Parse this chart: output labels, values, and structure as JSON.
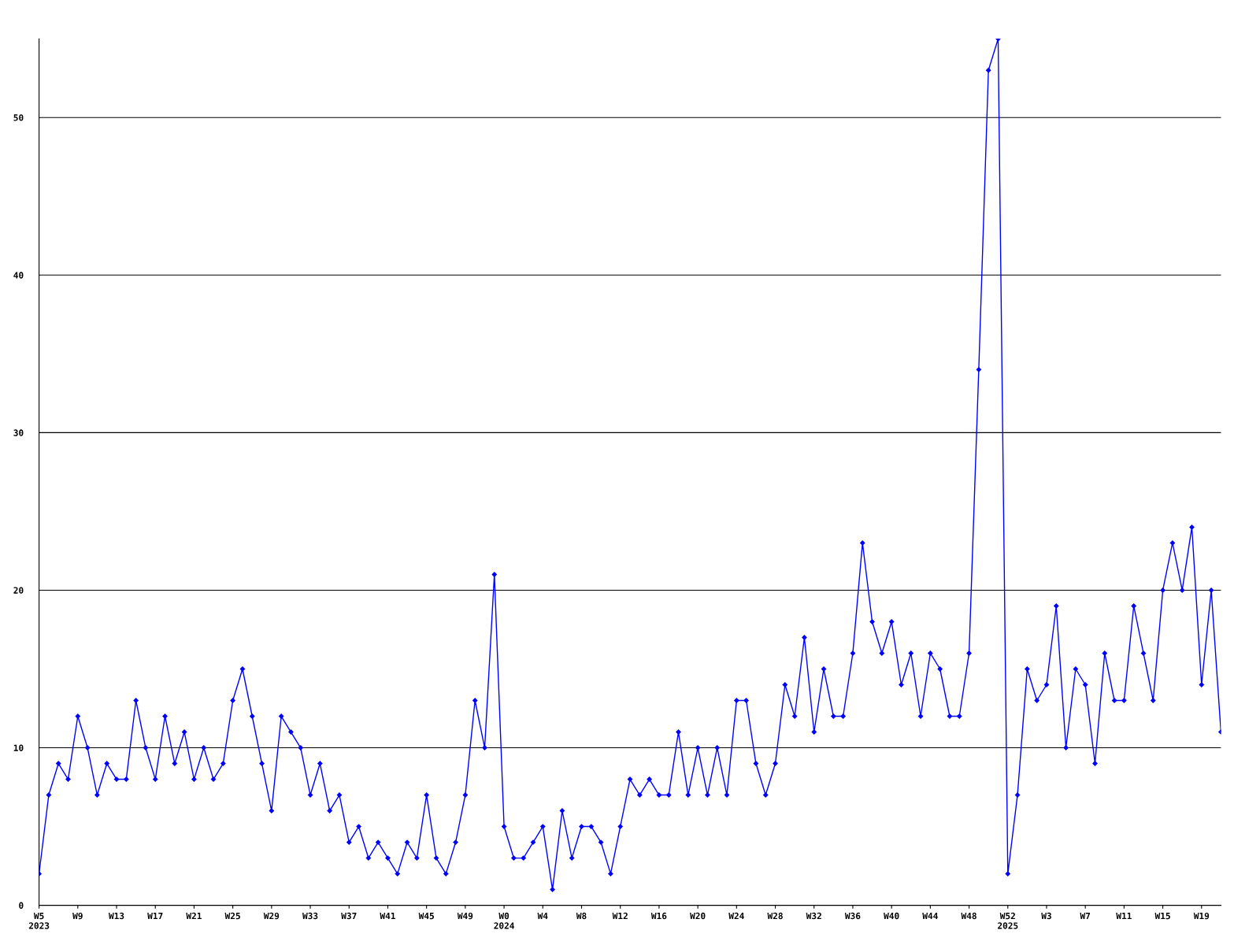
{
  "chart_data": {
    "type": "line",
    "categories": [
      "W5\n2023",
      null,
      null,
      null,
      "W9",
      null,
      null,
      null,
      "W13",
      null,
      null,
      null,
      "W17",
      null,
      null,
      null,
      "W21",
      null,
      null,
      null,
      "W25",
      null,
      null,
      null,
      "W29",
      null,
      null,
      null,
      "W33",
      null,
      null,
      null,
      "W37",
      null,
      null,
      null,
      "W41",
      null,
      null,
      null,
      "W45",
      null,
      null,
      null,
      "W49",
      null,
      null,
      null,
      "W0\n2024",
      null,
      null,
      null,
      "W4",
      null,
      null,
      null,
      "W8",
      null,
      null,
      null,
      "W12",
      null,
      null,
      null,
      "W16",
      null,
      null,
      null,
      "W20",
      null,
      null,
      null,
      "W24",
      null,
      null,
      null,
      "W28",
      null,
      null,
      null,
      "W32",
      null,
      null,
      null,
      "W36",
      null,
      null,
      null,
      "W40",
      null,
      null,
      null,
      "W44",
      null,
      null,
      null,
      "W48",
      null,
      null,
      null,
      "W52\n2025",
      null,
      null,
      null,
      "W3",
      null,
      null,
      null,
      "W7",
      null,
      null,
      null,
      "W11",
      null,
      null,
      null,
      "W15",
      null,
      null,
      null,
      "W19",
      null,
      null
    ],
    "series": [
      {
        "color": "#0000ff",
        "values": [
          2,
          7,
          9,
          8,
          12,
          10,
          7,
          9,
          8,
          8,
          13,
          10,
          8,
          12,
          9,
          11,
          8,
          10,
          8,
          9,
          13,
          15,
          12,
          9,
          6,
          12,
          11,
          10,
          7,
          9,
          6,
          7,
          4,
          5,
          3,
          4,
          3,
          2,
          4,
          3,
          7,
          3,
          2,
          4,
          7,
          13,
          10,
          21,
          5,
          3,
          3,
          4,
          5,
          1,
          6,
          3,
          5,
          5,
          4,
          2,
          5,
          8,
          7,
          8,
          7,
          7,
          11,
          7,
          10,
          7,
          10,
          7,
          13,
          13,
          9,
          7,
          9,
          14,
          12,
          17,
          11,
          15,
          12,
          12,
          16,
          23,
          18,
          16,
          18,
          14,
          16,
          12,
          16,
          15,
          12,
          12,
          16,
          34,
          53,
          55,
          2,
          7,
          15,
          13,
          14,
          19,
          10,
          15,
          14,
          9,
          16,
          13,
          13,
          19,
          16,
          13,
          20,
          23,
          20,
          24,
          14,
          20,
          11
        ]
      }
    ],
    "ylim": [
      0,
      55
    ],
    "yticks": [
      0,
      10,
      20,
      30,
      40,
      50
    ],
    "grid": "y",
    "marker": "diamond",
    "line_style": "solid",
    "legend": false
  }
}
